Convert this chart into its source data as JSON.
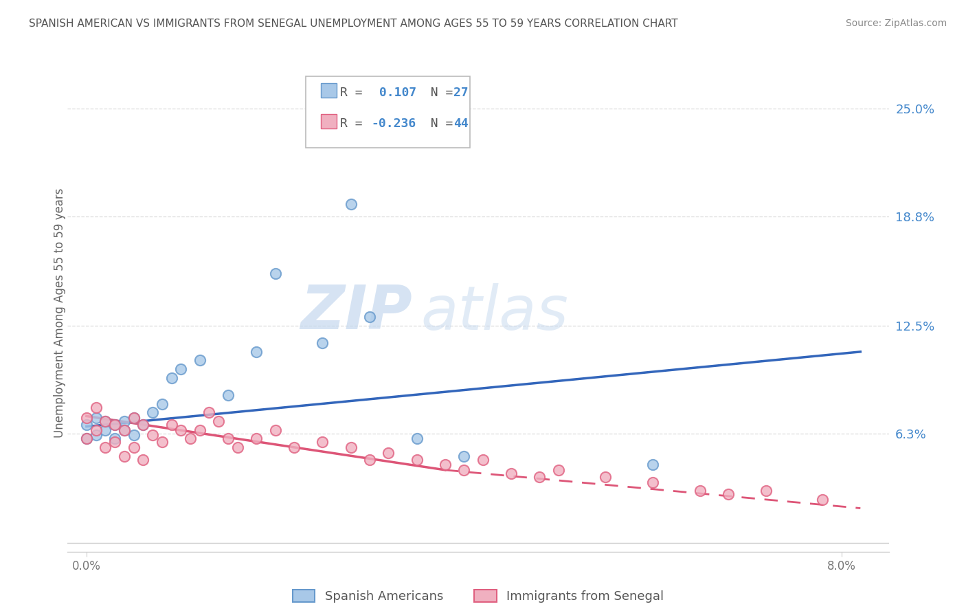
{
  "title": "SPANISH AMERICAN VS IMMIGRANTS FROM SENEGAL UNEMPLOYMENT AMONG AGES 55 TO 59 YEARS CORRELATION CHART",
  "source": "Source: ZipAtlas.com",
  "ylabel": "Unemployment Among Ages 55 to 59 years",
  "y_ticks": [
    0.0,
    0.063,
    0.125,
    0.188,
    0.25
  ],
  "y_tick_labels": [
    "",
    "6.3%",
    "12.5%",
    "18.8%",
    "25.0%"
  ],
  "x_lim": [
    -0.002,
    0.085
  ],
  "y_lim": [
    -0.005,
    0.27
  ],
  "x_ticks": [
    0.0,
    0.08
  ],
  "x_tick_labels": [
    "0.0%",
    "8.0%"
  ],
  "watermark_zip": "ZIP",
  "watermark_atlas": "atlas",
  "legend_r1_label": "R = ",
  "legend_r1_val": " 0.107",
  "legend_n1_label": "N = ",
  "legend_n1_val": "27",
  "legend_r2_label": "R = ",
  "legend_r2_val": "-0.236",
  "legend_n2_label": "N = ",
  "legend_n2_val": "44",
  "series1_color": "#A8C8E8",
  "series1_edge": "#6699CC",
  "series2_color": "#F0B0C0",
  "series2_edge": "#E06080",
  "line1_color": "#3366BB",
  "line2_color": "#DD5577",
  "label_color": "#4488CC",
  "background_color": "#FFFFFF",
  "grid_color": "#DDDDDD",
  "title_color": "#555555",
  "source_color": "#888888",
  "spanish_x": [
    0.0,
    0.0,
    0.001,
    0.001,
    0.002,
    0.002,
    0.003,
    0.003,
    0.004,
    0.004,
    0.005,
    0.005,
    0.006,
    0.007,
    0.008,
    0.009,
    0.01,
    0.012,
    0.015,
    0.018,
    0.02,
    0.025,
    0.028,
    0.03,
    0.035,
    0.04,
    0.06
  ],
  "spanish_y": [
    0.06,
    0.068,
    0.062,
    0.072,
    0.065,
    0.07,
    0.06,
    0.068,
    0.07,
    0.065,
    0.072,
    0.062,
    0.068,
    0.075,
    0.08,
    0.095,
    0.1,
    0.105,
    0.085,
    0.11,
    0.155,
    0.115,
    0.195,
    0.13,
    0.06,
    0.05,
    0.045
  ],
  "senegal_x": [
    0.0,
    0.0,
    0.001,
    0.001,
    0.002,
    0.002,
    0.003,
    0.003,
    0.004,
    0.004,
    0.005,
    0.005,
    0.006,
    0.006,
    0.007,
    0.008,
    0.009,
    0.01,
    0.011,
    0.012,
    0.013,
    0.014,
    0.015,
    0.016,
    0.018,
    0.02,
    0.022,
    0.025,
    0.028,
    0.03,
    0.032,
    0.035,
    0.038,
    0.04,
    0.042,
    0.045,
    0.048,
    0.05,
    0.055,
    0.06,
    0.065,
    0.068,
    0.072,
    0.078
  ],
  "senegal_y": [
    0.072,
    0.06,
    0.078,
    0.065,
    0.07,
    0.055,
    0.068,
    0.058,
    0.065,
    0.05,
    0.072,
    0.055,
    0.068,
    0.048,
    0.062,
    0.058,
    0.068,
    0.065,
    0.06,
    0.065,
    0.075,
    0.07,
    0.06,
    0.055,
    0.06,
    0.065,
    0.055,
    0.058,
    0.055,
    0.048,
    0.052,
    0.048,
    0.045,
    0.042,
    0.048,
    0.04,
    0.038,
    0.042,
    0.038,
    0.035,
    0.03,
    0.028,
    0.03,
    0.025
  ]
}
